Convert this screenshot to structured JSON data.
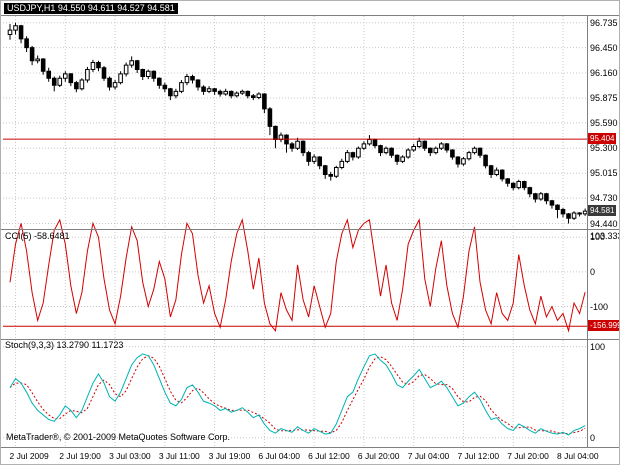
{
  "window": {
    "title": "USDJPY,H1"
  },
  "panels": {
    "price": {
      "label": "USDJPY,H1 94.550 94.611 94.527 94.581",
      "axis_labels": [
        "96.735",
        "96.450",
        "96.160",
        "95.875",
        "95.590",
        "95.300",
        "95.015",
        "94.730",
        "94.440"
      ],
      "hline": {
        "value": 95.404,
        "label": "95.404"
      },
      "current_price": {
        "value": 94.581,
        "label": "94.581"
      }
    },
    "cci": {
      "label": "CCI(5) -58.6481",
      "axis_labels": [
        "103.3333",
        "100",
        "0",
        "-100"
      ],
      "hline": {
        "value": -156.999,
        "label": "-156.999"
      }
    },
    "stoch": {
      "label": "Stoch(9,3,3) 13.2790 11.1723",
      "axis_labels": [
        "100",
        "0"
      ]
    }
  },
  "time_axis": {
    "labels": [
      "2 Jul 2009",
      "2 Jul 19:00",
      "3 Jul 03:00",
      "3 Jul 11:00",
      "3 Jul 19:00",
      "6 Jul 04:00",
      "6 Jul 12:00",
      "6 Jul 20:00",
      "7 Jul 04:00",
      "7 Jul 12:00",
      "7 Jul 20:00",
      "8 Jul 04:00"
    ]
  },
  "footer": {
    "copyright": "MetaTrader®, © 2001-2009 MetaQuotes Software Corp."
  },
  "colors": {
    "grid": "#c8c8c8",
    "panel_border": "#808080",
    "wick": "#000000",
    "bull_body": "#ffffff",
    "bear_body": "#000000",
    "accent_red": "#cc0000",
    "cci_line": "#d40000",
    "stoch_main": "#00b3b3",
    "stoch_signal": "#cc0000",
    "badge_dark": "#3a3a3a"
  },
  "chart_data": [
    {
      "type": "candlestick",
      "symbol": "USDJPY",
      "timeframe": "H1",
      "title": "USDJPY,H1",
      "ylim": [
        94.4,
        96.8
      ],
      "hline": 95.404,
      "current_price": 94.581,
      "x_tick_bars": [
        1,
        10,
        19,
        28,
        37,
        46,
        55,
        64,
        73,
        82,
        91,
        100
      ],
      "x_tick_labels": [
        "2 Jul 2009",
        "2 Jul 19:00",
        "3 Jul 03:00",
        "3 Jul 11:00",
        "3 Jul 19:00",
        "6 Jul 04:00",
        "6 Jul 12:00",
        "6 Jul 20:00",
        "7 Jul 04:00",
        "7 Jul 12:00",
        "7 Jul 20:00",
        "8 Jul 04:00"
      ],
      "ohlc": [
        [
          96.6,
          96.72,
          96.54,
          96.65
        ],
        [
          96.65,
          96.735,
          96.6,
          96.7
        ],
        [
          96.7,
          96.71,
          96.5,
          96.55
        ],
        [
          96.55,
          96.58,
          96.4,
          96.45
        ],
        [
          96.45,
          96.47,
          96.25,
          96.3
        ],
        [
          96.3,
          96.36,
          96.27,
          96.32
        ],
        [
          96.32,
          96.33,
          96.14,
          96.18
        ],
        [
          96.18,
          96.22,
          96.06,
          96.1
        ],
        [
          96.1,
          96.12,
          95.95,
          96.02
        ],
        [
          96.02,
          96.13,
          96.0,
          96.1
        ],
        [
          96.1,
          96.18,
          96.06,
          96.15
        ],
        [
          96.15,
          96.16,
          96.01,
          96.05
        ],
        [
          96.05,
          96.07,
          95.94,
          95.98
        ],
        [
          95.98,
          96.1,
          95.96,
          96.08
        ],
        [
          96.08,
          96.23,
          96.05,
          96.2
        ],
        [
          96.2,
          96.31,
          96.17,
          96.28
        ],
        [
          96.28,
          96.3,
          96.18,
          96.22
        ],
        [
          96.22,
          96.24,
          96.07,
          96.1
        ],
        [
          96.1,
          96.12,
          95.96,
          96.0
        ],
        [
          96.0,
          96.08,
          95.97,
          96.05
        ],
        [
          96.05,
          96.18,
          96.03,
          96.15
        ],
        [
          96.15,
          96.28,
          96.12,
          96.25
        ],
        [
          96.25,
          96.35,
          96.22,
          96.3
        ],
        [
          96.3,
          96.31,
          96.16,
          96.2
        ],
        [
          96.2,
          96.21,
          96.08,
          96.12
        ],
        [
          96.12,
          96.2,
          96.09,
          96.18
        ],
        [
          96.18,
          96.19,
          96.06,
          96.1
        ],
        [
          96.1,
          96.11,
          95.98,
          96.02
        ],
        [
          96.02,
          96.05,
          95.94,
          95.98
        ],
        [
          95.98,
          95.99,
          95.85,
          95.9
        ],
        [
          95.9,
          95.98,
          95.87,
          95.95
        ],
        [
          95.95,
          96.08,
          95.93,
          96.05
        ],
        [
          96.05,
          96.15,
          96.02,
          96.12
        ],
        [
          96.12,
          96.14,
          96.04,
          96.08
        ],
        [
          96.08,
          96.09,
          95.96,
          96.0
        ],
        [
          96.0,
          96.02,
          95.91,
          95.95
        ],
        [
          95.95,
          96.01,
          95.93,
          95.98
        ],
        [
          95.98,
          95.99,
          95.91,
          95.95
        ],
        [
          95.95,
          95.97,
          95.89,
          95.92
        ],
        [
          95.92,
          95.98,
          95.9,
          95.95
        ],
        [
          95.95,
          95.96,
          95.87,
          95.9
        ],
        [
          95.9,
          95.95,
          95.88,
          95.93
        ],
        [
          95.93,
          95.97,
          95.91,
          95.95
        ],
        [
          95.95,
          95.96,
          95.87,
          95.9
        ],
        [
          95.9,
          95.92,
          95.85,
          95.88
        ],
        [
          95.88,
          95.94,
          95.86,
          95.92
        ],
        [
          95.92,
          95.93,
          95.7,
          95.75
        ],
        [
          95.75,
          95.77,
          95.45,
          95.55
        ],
        [
          95.55,
          95.56,
          95.3,
          95.4
        ],
        [
          95.4,
          95.48,
          95.37,
          95.45
        ],
        [
          95.45,
          95.46,
          95.25,
          95.35
        ],
        [
          95.35,
          95.37,
          95.26,
          95.3
        ],
        [
          95.3,
          95.42,
          95.28,
          95.38
        ],
        [
          95.38,
          95.39,
          95.21,
          95.25
        ],
        [
          95.25,
          95.27,
          95.1,
          95.15
        ],
        [
          95.15,
          95.23,
          95.12,
          95.2
        ],
        [
          95.2,
          95.21,
          95.06,
          95.1
        ],
        [
          95.1,
          95.11,
          94.95,
          95.0
        ],
        [
          95.0,
          95.03,
          94.93,
          94.98
        ],
        [
          94.98,
          95.1,
          94.96,
          95.08
        ],
        [
          95.08,
          95.18,
          95.06,
          95.15
        ],
        [
          95.15,
          95.28,
          95.13,
          95.25
        ],
        [
          95.25,
          95.26,
          95.16,
          95.2
        ],
        [
          95.2,
          95.32,
          95.18,
          95.3
        ],
        [
          95.3,
          95.38,
          95.28,
          95.35
        ],
        [
          95.35,
          95.45,
          95.33,
          95.4
        ],
        [
          95.4,
          95.41,
          95.3,
          95.33
        ],
        [
          95.33,
          95.34,
          95.21,
          95.25
        ],
        [
          95.25,
          95.32,
          95.23,
          95.3
        ],
        [
          95.3,
          95.31,
          95.19,
          95.22
        ],
        [
          95.22,
          95.23,
          95.11,
          95.15
        ],
        [
          95.15,
          95.22,
          95.13,
          95.2
        ],
        [
          95.2,
          95.3,
          95.18,
          95.28
        ],
        [
          95.28,
          95.35,
          95.26,
          95.32
        ],
        [
          95.32,
          95.42,
          95.3,
          95.38
        ],
        [
          95.38,
          95.39,
          95.27,
          95.3
        ],
        [
          95.3,
          95.31,
          95.21,
          95.25
        ],
        [
          95.25,
          95.32,
          95.23,
          95.3
        ],
        [
          95.3,
          95.37,
          95.28,
          95.35
        ],
        [
          95.35,
          95.36,
          95.25,
          95.28
        ],
        [
          95.28,
          95.29,
          95.17,
          95.2
        ],
        [
          95.2,
          95.21,
          95.08,
          95.12
        ],
        [
          95.12,
          95.2,
          95.1,
          95.18
        ],
        [
          95.18,
          95.27,
          95.16,
          95.25
        ],
        [
          95.25,
          95.32,
          95.23,
          95.3
        ],
        [
          95.3,
          95.31,
          95.19,
          95.22
        ],
        [
          95.22,
          95.23,
          95.07,
          95.1
        ],
        [
          95.1,
          95.11,
          94.96,
          95.0
        ],
        [
          95.0,
          95.08,
          94.98,
          95.05
        ],
        [
          95.05,
          95.06,
          94.92,
          94.95
        ],
        [
          94.95,
          94.96,
          94.86,
          94.9
        ],
        [
          94.9,
          94.91,
          94.82,
          94.85
        ],
        [
          94.85,
          94.94,
          94.83,
          94.92
        ],
        [
          94.92,
          94.93,
          94.82,
          94.85
        ],
        [
          94.85,
          94.86,
          94.74,
          94.78
        ],
        [
          94.78,
          94.79,
          94.68,
          94.72
        ],
        [
          94.72,
          94.8,
          94.7,
          94.78
        ],
        [
          94.78,
          94.79,
          94.66,
          94.7
        ],
        [
          94.7,
          94.71,
          94.61,
          94.65
        ],
        [
          94.65,
          94.66,
          94.5,
          94.6
        ],
        [
          94.6,
          94.62,
          94.51,
          94.55
        ],
        [
          94.55,
          94.56,
          94.44,
          94.5
        ],
        [
          94.5,
          94.58,
          94.48,
          94.56
        ],
        [
          94.56,
          94.57,
          94.52,
          94.55
        ],
        [
          94.55,
          94.611,
          94.527,
          94.581
        ]
      ]
    },
    {
      "type": "line",
      "name": "CCI(5)",
      "current": -58.6481,
      "ylim": [
        -185,
        115
      ],
      "levels": [
        100,
        0,
        -100
      ],
      "hline": -156.999,
      "values": [
        -30,
        80,
        140,
        60,
        -60,
        -140,
        -90,
        20,
        120,
        150,
        80,
        -40,
        -120,
        -60,
        60,
        140,
        100,
        -20,
        -110,
        -150,
        -70,
        40,
        130,
        90,
        -30,
        -100,
        -50,
        30,
        -20,
        -130,
        -80,
        50,
        140,
        110,
        -10,
        -90,
        -40,
        -120,
        -160,
        -80,
        30,
        110,
        150,
        60,
        -50,
        40,
        -90,
        -150,
        -170,
        -60,
        -110,
        -140,
        20,
        -80,
        -130,
        -40,
        -100,
        -160,
        -120,
        30,
        110,
        150,
        70,
        120,
        140,
        150,
        40,
        -70,
        20,
        -90,
        -140,
        -50,
        80,
        120,
        150,
        -20,
        -100,
        10,
        90,
        -40,
        -120,
        -160,
        -70,
        60,
        130,
        -30,
        -110,
        -150,
        -60,
        -120,
        -140,
        -90,
        50,
        -40,
        -110,
        -150,
        -70,
        -130,
        -100,
        -140,
        -120,
        -170,
        -90,
        -120,
        -58.6
      ]
    },
    {
      "type": "line",
      "name": "Stoch(9,3,3)",
      "current_main": 13.279,
      "current_signal": 11.1723,
      "ylim": [
        -8,
        104
      ],
      "main": [
        55,
        65,
        60,
        50,
        38,
        30,
        25,
        20,
        18,
        25,
        35,
        30,
        22,
        30,
        45,
        60,
        70,
        60,
        45,
        40,
        50,
        65,
        80,
        88,
        92,
        90,
        80,
        65,
        50,
        38,
        35,
        42,
        55,
        58,
        50,
        40,
        38,
        35,
        30,
        32,
        28,
        30,
        33,
        28,
        22,
        25,
        15,
        8,
        5,
        10,
        8,
        6,
        12,
        8,
        5,
        10,
        7,
        4,
        5,
        15,
        30,
        45,
        50,
        65,
        78,
        90,
        92,
        85,
        80,
        70,
        58,
        55,
        62,
        68,
        75,
        65,
        55,
        58,
        62,
        55,
        45,
        35,
        38,
        45,
        50,
        42,
        30,
        20,
        22,
        15,
        10,
        8,
        15,
        12,
        8,
        5,
        10,
        7,
        5,
        4,
        6,
        3,
        8,
        10,
        13.28
      ],
      "signal_period": 3
    }
  ]
}
